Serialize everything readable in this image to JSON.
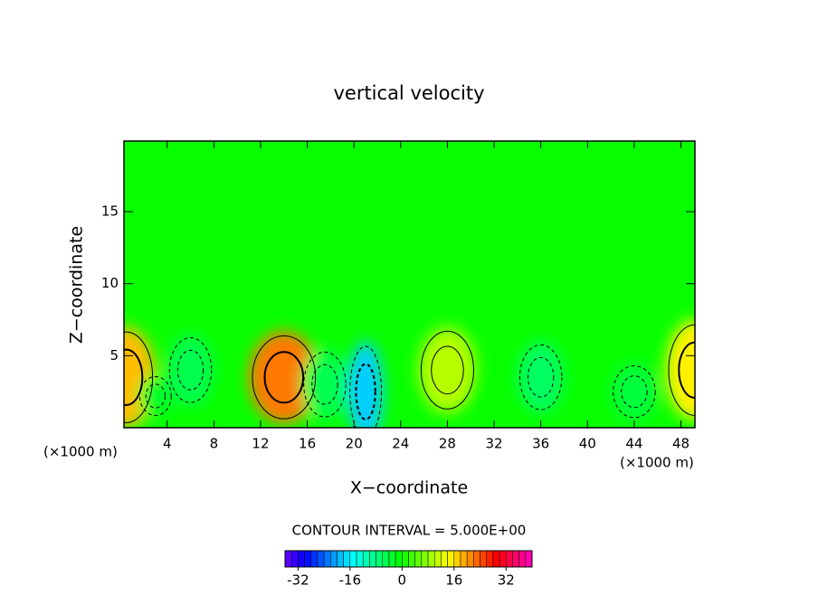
{
  "chart_data": {
    "type": "contour",
    "title": "vertical velocity",
    "xlabel": "X−coordinate",
    "ylabel": "Z−coordinate",
    "x_unit_left": "(×1000 m)",
    "x_unit_right": "(×1000 m)",
    "contour_note": "CONTOUR INTERVAL = 5.000E+00",
    "xlim": [
      0.3,
      49.2
    ],
    "ylim": [
      0,
      19.9
    ],
    "xticks": [
      4,
      8,
      12,
      16,
      20,
      24,
      28,
      32,
      36,
      40,
      44,
      48
    ],
    "yticks": [
      5,
      10,
      15
    ],
    "clim": [
      -36,
      40
    ],
    "cticks": [
      -32,
      -16,
      0,
      16,
      32
    ],
    "features": [
      {
        "x": 0.5,
        "y": 3.5,
        "rx": 2.5,
        "ry": 3.5,
        "value": 18
      },
      {
        "x": 14,
        "y": 3.5,
        "rx": 3,
        "ry": 3.2,
        "value": 22
      },
      {
        "x": 28,
        "y": 4,
        "rx": 2.5,
        "ry": 3,
        "value": 10
      },
      {
        "x": 21,
        "y": 2.5,
        "rx": 1.5,
        "ry": 3.5,
        "value": -18
      },
      {
        "x": 17.5,
        "y": 3,
        "rx": 2,
        "ry": 2.5,
        "value": -5
      },
      {
        "x": 6,
        "y": 4,
        "rx": 2,
        "ry": 2.5,
        "value": -5
      },
      {
        "x": 36,
        "y": 3.5,
        "rx": 2,
        "ry": 2.5,
        "value": -6
      },
      {
        "x": 44,
        "y": 2.5,
        "rx": 2,
        "ry": 2,
        "value": -4
      },
      {
        "x": 49.2,
        "y": 4,
        "rx": 2.5,
        "ry": 3.5,
        "value": 15
      },
      {
        "x": 3,
        "y": 2.2,
        "rx": 1.5,
        "ry": 1.5,
        "value": -3
      }
    ]
  }
}
